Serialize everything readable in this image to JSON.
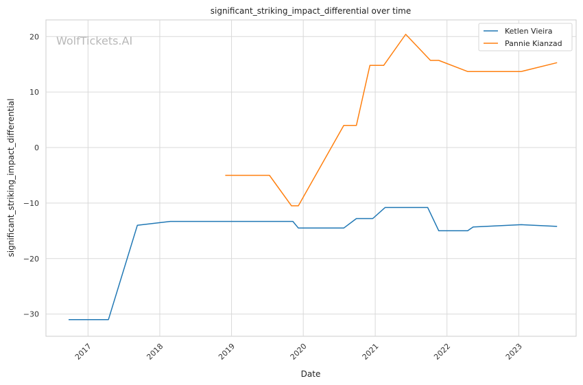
{
  "watermark": "WolfTickets.AI",
  "chart_data": {
    "type": "line",
    "title": "significant_striking_impact_differential over time",
    "xlabel": "Date",
    "ylabel": "significant_striking_impact_differential",
    "xlim": [
      "2016-06-01",
      "2023-10-20"
    ],
    "ylim": [
      -34,
      23
    ],
    "x_ticks": [
      "2017",
      "2018",
      "2019",
      "2020",
      "2021",
      "2022",
      "2023"
    ],
    "y_ticks": [
      -30,
      -20,
      -10,
      0,
      10,
      20
    ],
    "grid": true,
    "legend_position": "top-right",
    "series": [
      {
        "name": "Ketlen Vieira",
        "color": "#1f77b4",
        "points": [
          [
            "2016-09-24",
            -31.0
          ],
          [
            "2017-04-15",
            -31.0
          ],
          [
            "2017-09-09",
            -14.0
          ],
          [
            "2018-02-24",
            -13.3
          ],
          [
            "2018-07-01",
            -13.3
          ],
          [
            "2019-11-09",
            -13.3
          ],
          [
            "2019-12-07",
            -14.5
          ],
          [
            "2020-07-25",
            -14.5
          ],
          [
            "2020-09-27",
            -12.8
          ],
          [
            "2020-12-19",
            -12.8
          ],
          [
            "2021-02-20",
            -10.8
          ],
          [
            "2021-09-25",
            -10.8
          ],
          [
            "2021-11-20",
            -15.0
          ],
          [
            "2022-04-16",
            -15.0
          ],
          [
            "2022-05-14",
            -14.3
          ],
          [
            "2023-01-14",
            -13.9
          ],
          [
            "2023-07-15",
            -14.2
          ]
        ]
      },
      {
        "name": "Pannie Kianzad",
        "color": "#ff7f0e",
        "points": [
          [
            "2018-11-30",
            -5.0
          ],
          [
            "2019-07-13",
            -5.0
          ],
          [
            "2019-11-02",
            -10.5
          ],
          [
            "2019-12-07",
            -10.5
          ],
          [
            "2020-07-25",
            4.0
          ],
          [
            "2020-09-27",
            4.0
          ],
          [
            "2020-12-05",
            14.8
          ],
          [
            "2021-02-13",
            14.8
          ],
          [
            "2021-06-05",
            20.4
          ],
          [
            "2021-10-09",
            15.7
          ],
          [
            "2021-11-20",
            15.7
          ],
          [
            "2022-04-16",
            13.7
          ],
          [
            "2022-09-03",
            13.7
          ],
          [
            "2023-01-14",
            13.7
          ],
          [
            "2023-07-15",
            15.3
          ]
        ]
      }
    ]
  }
}
